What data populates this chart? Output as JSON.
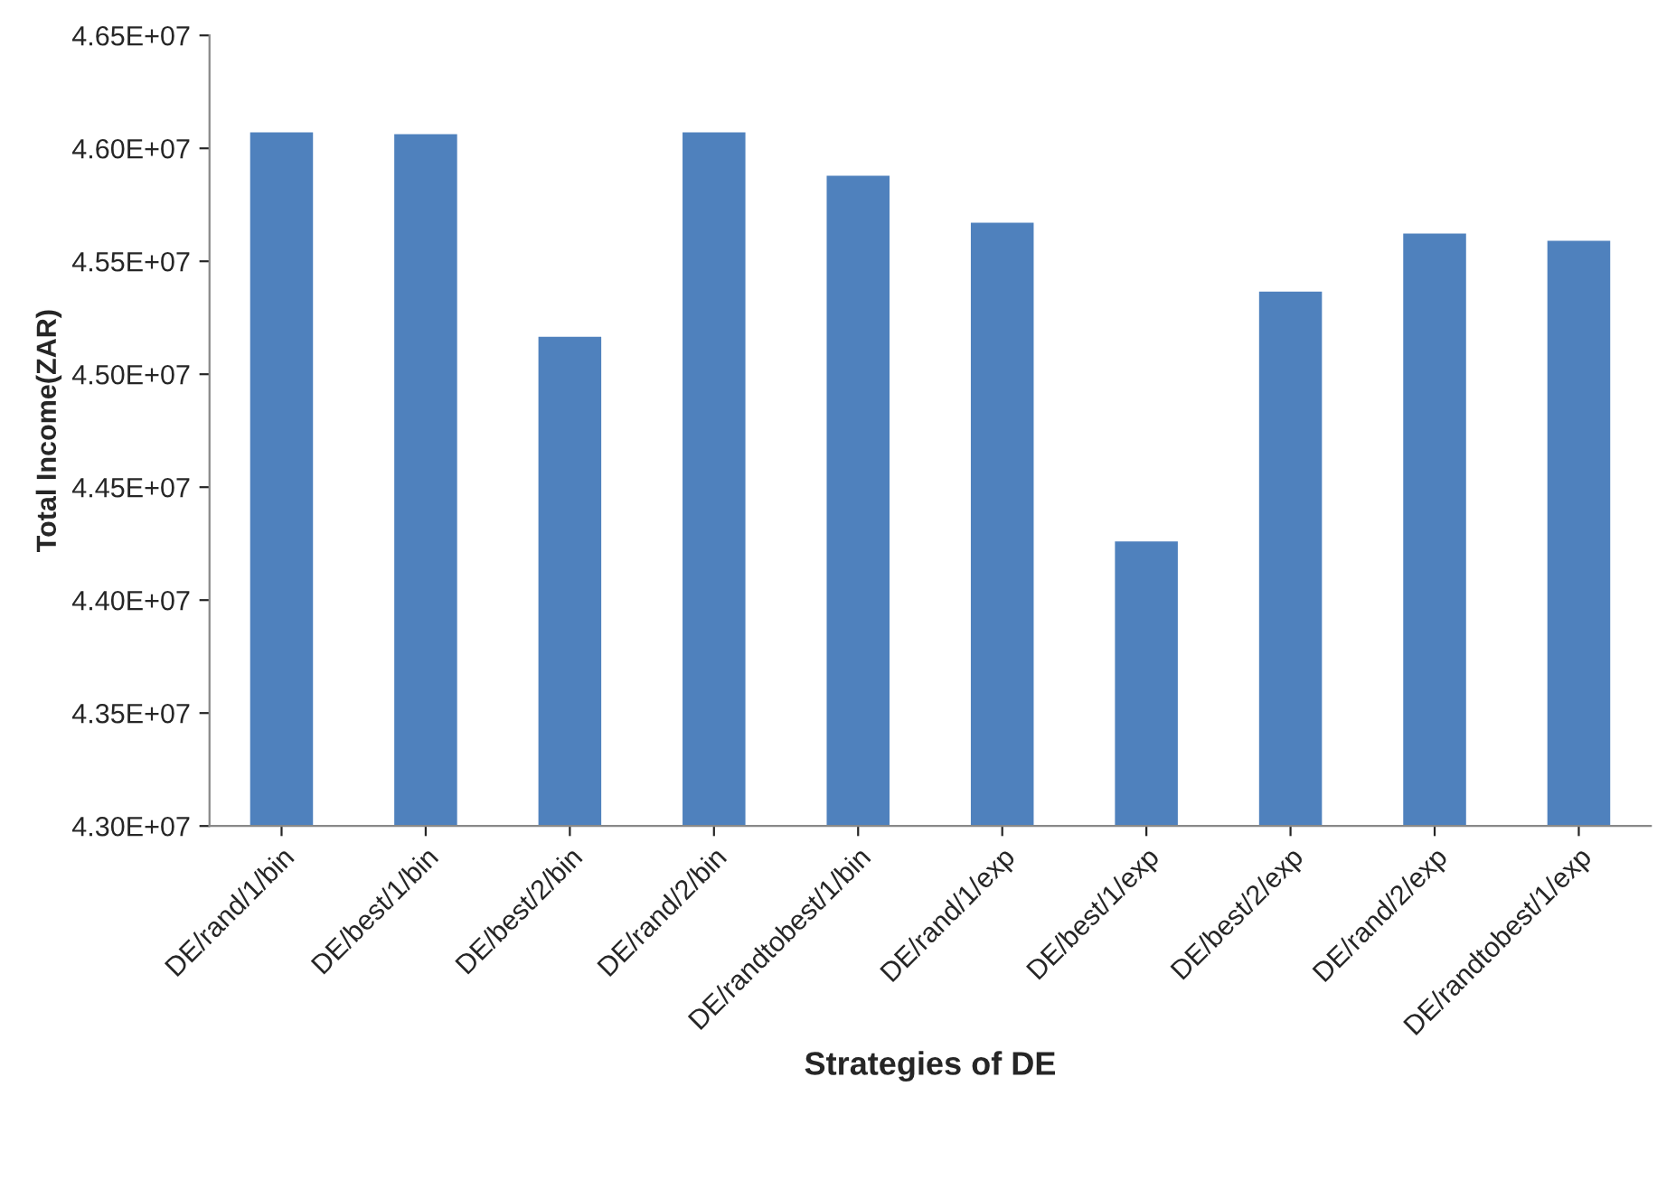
{
  "chart_data": {
    "type": "bar",
    "xlabel": "Strategies of DE",
    "ylabel": "Total Income(ZAR)",
    "categories": [
      "DE/rand/1/bin",
      "DE/best/1/bin",
      "DE/best/2/bin",
      "DE/rand/2/bin",
      "DE/randtobest/1/bin",
      "DE/rand/1/exp",
      "DE/best/1/exp",
      "DE/best/2/exp",
      "DE/rand/2/exp",
      "DE/randtobest/1/exp"
    ],
    "values": [
      46075000,
      46067000,
      45170000,
      46075000,
      45883000,
      45675000,
      44264000,
      45370000,
      45627000,
      45595000
    ],
    "color": "#4f81bd",
    "ylim": [
      43000000,
      46500000
    ],
    "yticks": [
      {
        "value": 43000000,
        "label": "4.30E+07"
      },
      {
        "value": 43500000,
        "label": "4.35E+07"
      },
      {
        "value": 44000000,
        "label": "4.40E+07"
      },
      {
        "value": 44500000,
        "label": "4.45E+07"
      },
      {
        "value": 45000000,
        "label": "4.50E+07"
      },
      {
        "value": 45500000,
        "label": "4.55E+07"
      },
      {
        "value": 46000000,
        "label": "4.60E+07"
      },
      {
        "value": 46500000,
        "label": "4.65E+07"
      }
    ],
    "grid": false
  }
}
